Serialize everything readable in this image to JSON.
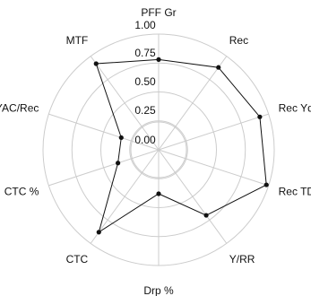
{
  "chart_data": {
    "type": "radar",
    "axes": [
      "PFF Gr",
      "Rec",
      "Rec Yds",
      "Rec TDs",
      "Y/RR",
      "Drp %",
      "CTC",
      "CTC %",
      "YAC/Rec",
      "MTF"
    ],
    "ticks": [
      "0.00",
      "0.25",
      "0.50",
      "0.75",
      "1.00"
    ],
    "rlim": [
      0,
      1
    ],
    "series": [
      {
        "values": [
          0.78,
          0.88,
          0.92,
          0.98,
          0.7,
          0.38,
          0.88,
          0.37,
          0.34,
          0.92
        ]
      }
    ],
    "grid": true,
    "legend": "none",
    "colors": {
      "series": "#111111",
      "grid": "#cccccc"
    }
  }
}
